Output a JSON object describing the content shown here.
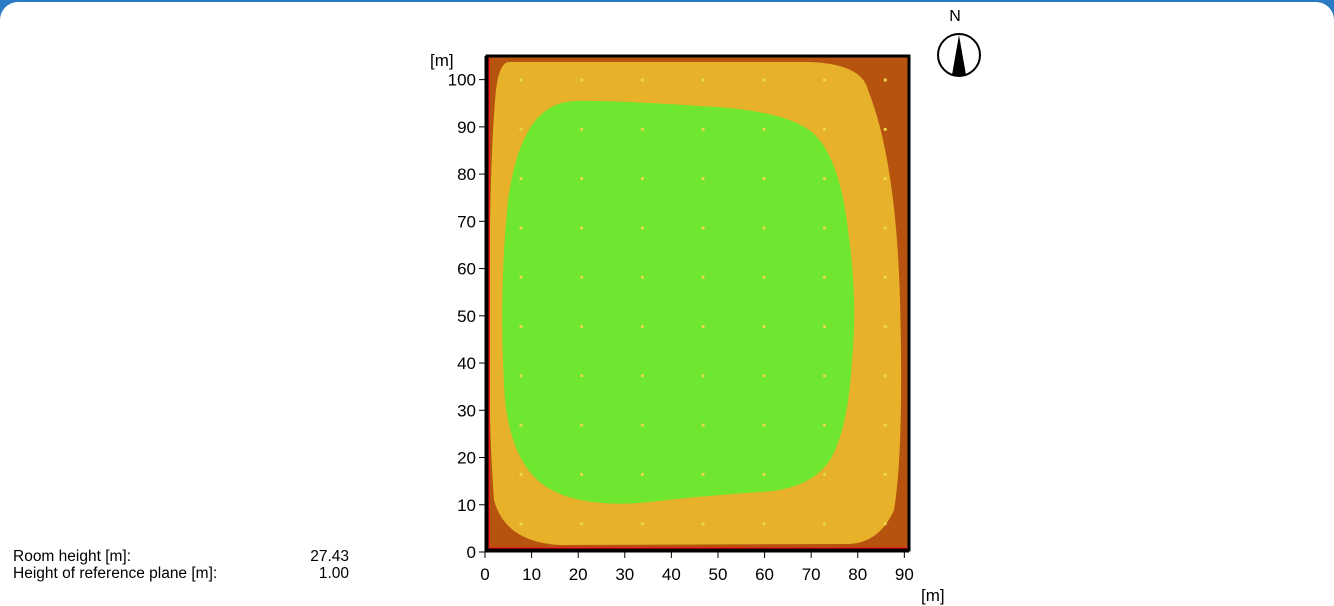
{
  "plot": {
    "x_unit": "[m]",
    "y_unit": "[m]",
    "x_ticks": [
      "0",
      "10",
      "20",
      "30",
      "40",
      "50",
      "60",
      "70",
      "80",
      "90"
    ],
    "y_ticks": [
      "0",
      "10",
      "20",
      "30",
      "40",
      "50",
      "60",
      "70",
      "80",
      "90",
      "100"
    ],
    "x_range": [
      0,
      91
    ],
    "y_range": [
      0,
      105
    ],
    "colors": {
      "outer": "#b5530f",
      "middle": "#e8b12a",
      "inner": "#6fe630",
      "frame": "#000000",
      "edge": "#e82020",
      "grid_point": "#e8d84a"
    }
  },
  "compass": {
    "label": "N"
  },
  "info": {
    "room_height_label": "Room height [m]:",
    "room_height_value": "27.43",
    "ref_plane_label": "Height of reference plane [m]:",
    "ref_plane_value": "1.00"
  }
}
